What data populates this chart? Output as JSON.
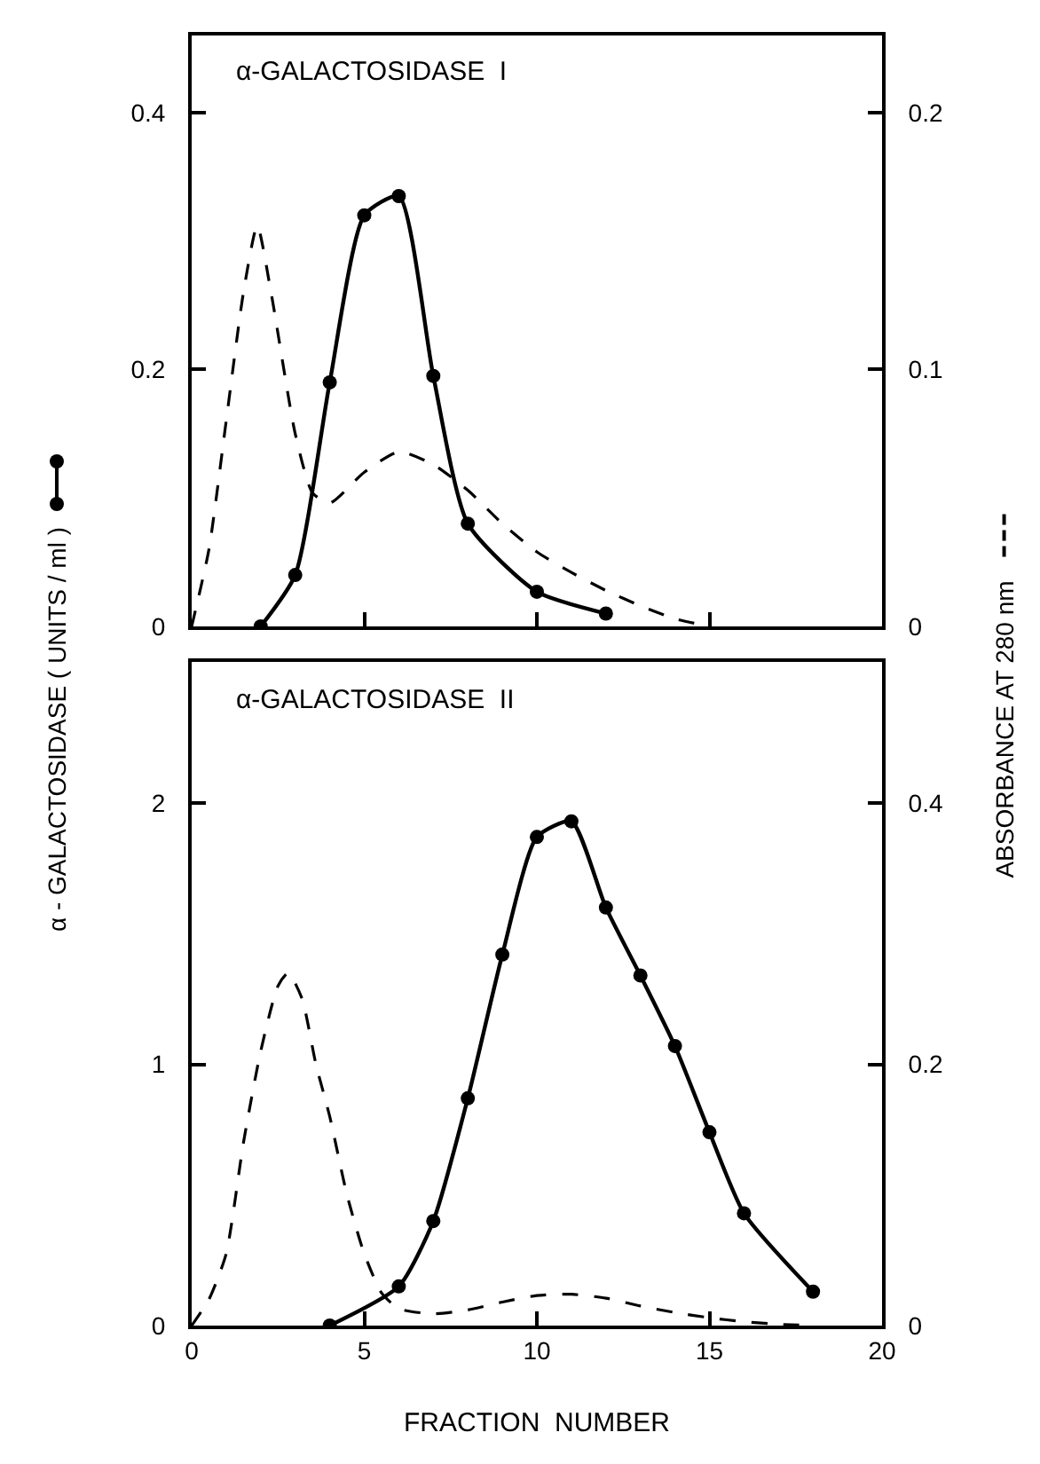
{
  "chart_data": [
    {
      "type": "line",
      "title": "α-GALACTOSIDASE  I",
      "ylabel": "α - GALACTOSIDASE   ( UNITS / ml )",
      "y2label": "ABSORBANCE  AT  280 nm",
      "xlim": [
        0,
        20
      ],
      "xticks": [
        {
          "value": 0,
          "label": null
        },
        {
          "value": 5,
          "label": null
        },
        {
          "value": 10,
          "label": null
        },
        {
          "value": 15,
          "label": null
        },
        {
          "value": 20,
          "label": null
        }
      ],
      "ylim": [
        0,
        0.46
      ],
      "yticks": [
        0,
        0.2,
        0.4
      ],
      "y2lim": [
        0,
        0.23
      ],
      "y2ticks": [
        0,
        0.1,
        0.2
      ],
      "tick_labels": "y",
      "grid": false,
      "series": [
        {
          "color": "#000000",
          "marker": "circle",
          "line_style": "solid",
          "x": [
            2,
            3,
            4,
            5,
            6,
            7,
            8,
            10,
            12
          ],
          "values": [
            0,
            0.04,
            0.19,
            0.32,
            0.335,
            0.195,
            0.08,
            0.027,
            0.01
          ]
        },
        {
          "color": "#000000",
          "marker": "none",
          "line_style": "dashed",
          "axis": "y2",
          "x": [
            0,
            0.5,
            1,
            1.5,
            1.9,
            2.3,
            3,
            3.5,
            4,
            5,
            6,
            7,
            8,
            9,
            10,
            11,
            12,
            13,
            14,
            15
          ],
          "values": [
            0,
            0.03,
            0.08,
            0.13,
            0.156,
            0.13,
            0.075,
            0.052,
            0.048,
            0.06,
            0.068,
            0.063,
            0.053,
            0.04,
            0.029,
            0.021,
            0.014,
            0.008,
            0.003,
            0
          ]
        }
      ]
    },
    {
      "type": "line",
      "title": "α-GALACTOSIDASE  II",
      "xlabel": "FRACTION  NUMBER",
      "xlim": [
        0,
        20
      ],
      "xticks": [
        0,
        5,
        10,
        15,
        20
      ],
      "ylim": [
        0,
        2.54
      ],
      "yticks": [
        0,
        1,
        2
      ],
      "y2lim": [
        0,
        0.508
      ],
      "y2ticks": [
        0,
        0.2,
        0.4
      ],
      "grid": false,
      "series": [
        {
          "color": "#000000",
          "marker": "circle",
          "line_style": "solid",
          "x": [
            4,
            6,
            7,
            8,
            9,
            10,
            11,
            12,
            13,
            14,
            15,
            16,
            18
          ],
          "values": [
            0,
            0.15,
            0.4,
            0.87,
            1.42,
            1.87,
            1.93,
            1.6,
            1.34,
            1.07,
            0.74,
            0.43,
            0.13
          ]
        },
        {
          "color": "#000000",
          "marker": "none",
          "line_style": "dashed",
          "axis": "y2",
          "x": [
            0,
            0.5,
            1,
            1.5,
            2,
            2.5,
            2.8,
            3.2,
            3.6,
            4,
            4.5,
            5,
            5.5,
            6,
            7,
            8,
            9,
            10,
            11,
            12,
            13,
            14,
            15,
            16,
            17,
            18
          ],
          "values": [
            0,
            0.02,
            0.055,
            0.14,
            0.21,
            0.26,
            0.27,
            0.25,
            0.2,
            0.16,
            0.1,
            0.055,
            0.025,
            0.013,
            0.009,
            0.012,
            0.018,
            0.023,
            0.024,
            0.021,
            0.015,
            0.01,
            0.006,
            0.003,
            0.001,
            0
          ]
        }
      ]
    }
  ]
}
